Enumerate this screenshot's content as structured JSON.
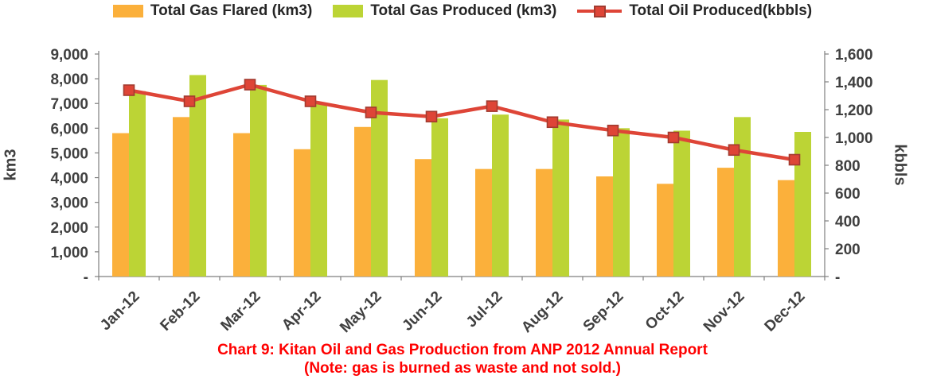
{
  "chart_data": {
    "type": "bar",
    "title": "Chart 9: Kitan Oil and Gas Production from ANP 2012 Annual Report",
    "subtitle": "(Note: gas is burned as waste and not sold.)",
    "title_color": "#FF0000",
    "categories": [
      "Jan-12",
      "Feb-12",
      "Mar-12",
      "Apr-12",
      "May-12",
      "Jun-12",
      "Jul-12",
      "Aug-12",
      "Sep-12",
      "Oct-12",
      "Nov-12",
      "Dec-12"
    ],
    "series": [
      {
        "name": "Total Gas Flared (km3)",
        "type": "bar",
        "axis": "left",
        "color": "#FBB03B",
        "values": [
          5800,
          6450,
          5800,
          5150,
          6050,
          4750,
          4350,
          4350,
          4050,
          3750,
          4400,
          3900
        ]
      },
      {
        "name": "Total Gas Produced (km3)",
        "type": "bar",
        "axis": "left",
        "color": "#BCD435",
        "values": [
          7500,
          8150,
          7750,
          7000,
          7950,
          6400,
          6550,
          6350,
          6000,
          5900,
          6450,
          5850
        ]
      },
      {
        "name": "Total Oil Produced(kbbls)",
        "type": "line",
        "axis": "right",
        "color": "#DE4537",
        "marker_stroke": "#A23B30",
        "values": [
          1340,
          1260,
          1380,
          1260,
          1180,
          1150,
          1225,
          1110,
          1050,
          1000,
          910,
          840
        ]
      }
    ],
    "left_axis": {
      "label": "km3",
      "min": 0,
      "max": 9000,
      "step": 1000,
      "tick_labels": [
        "-",
        "1,000",
        "2,000",
        "3,000",
        "4,000",
        "5,000",
        "6,000",
        "7,000",
        "8,000",
        "9,000"
      ]
    },
    "right_axis": {
      "label": "kbbls",
      "min": 0,
      "max": 1600,
      "step": 200,
      "tick_labels": [
        "-",
        "200",
        "400",
        "600",
        "800",
        "1,000",
        "1,200",
        "1,400",
        "1,600"
      ]
    },
    "grid": "off",
    "legend_position": "top",
    "axis_text_color": "#404040"
  }
}
